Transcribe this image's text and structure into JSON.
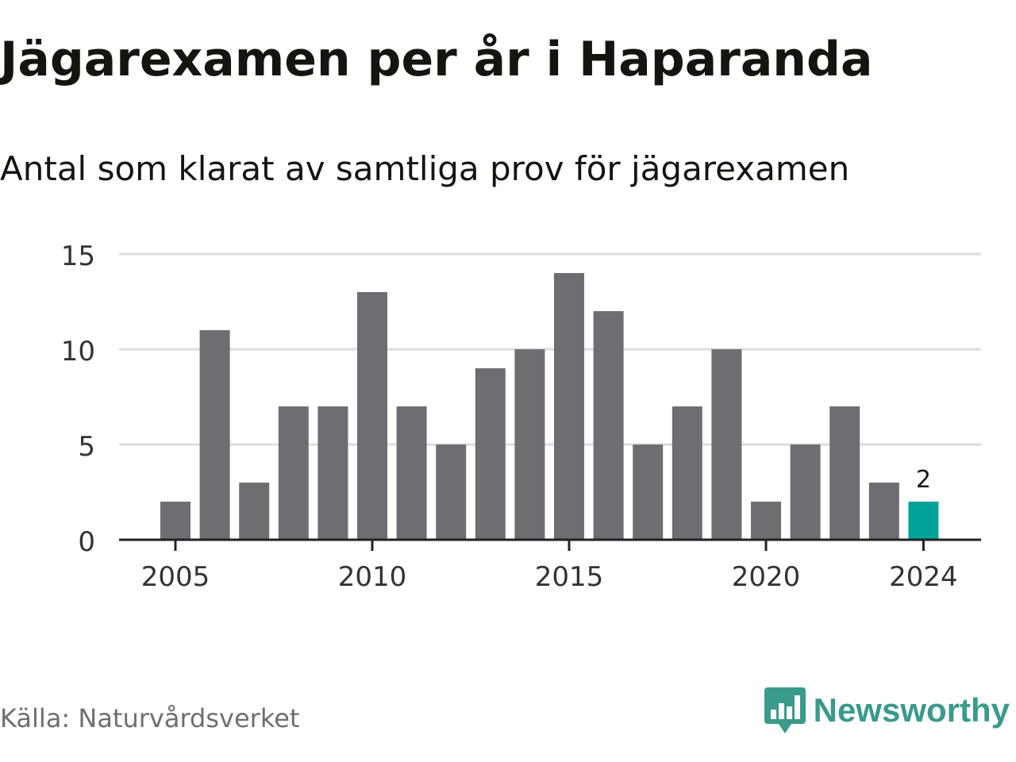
{
  "header": {
    "title": "Jägarexamen per år i Haparanda",
    "subtitle": "Antal som klarat av samtliga prov för jägarexamen"
  },
  "footer": {
    "source": "Källa: Naturvårdsverket",
    "brand": "Newsworthy",
    "brand_icon": "bar-chart-speech-bubble-icon"
  },
  "colors": {
    "bar": "#6e6d72",
    "highlight": "#00a398",
    "grid": "#dcdcdc",
    "axis": "#222222",
    "brand": "#3a9a8c"
  },
  "chart_data": {
    "type": "bar",
    "title": "Jägarexamen per år i Haparanda",
    "subtitle": "Antal som klarat av samtliga prov för jägarexamen",
    "xlabel": "",
    "ylabel": "",
    "categories": [
      "2005",
      "2006",
      "2007",
      "2008",
      "2009",
      "2010",
      "2011",
      "2012",
      "2013",
      "2014",
      "2015",
      "2016",
      "2017",
      "2018",
      "2019",
      "2020",
      "2021",
      "2022",
      "2023",
      "2024"
    ],
    "values": [
      2,
      11,
      3,
      7,
      7,
      13,
      7,
      5,
      9,
      10,
      14,
      12,
      5,
      7,
      10,
      2,
      5,
      7,
      3,
      2
    ],
    "ylim": [
      0,
      15
    ],
    "yticks": [
      0,
      5,
      10,
      15
    ],
    "xtick_labels": [
      "2005",
      "2010",
      "2015",
      "2020",
      "2024"
    ],
    "highlight_category": "2024",
    "data_labels": [
      {
        "category": "2024",
        "text": "2"
      }
    ],
    "grid": "horizontal",
    "legend": "none"
  }
}
